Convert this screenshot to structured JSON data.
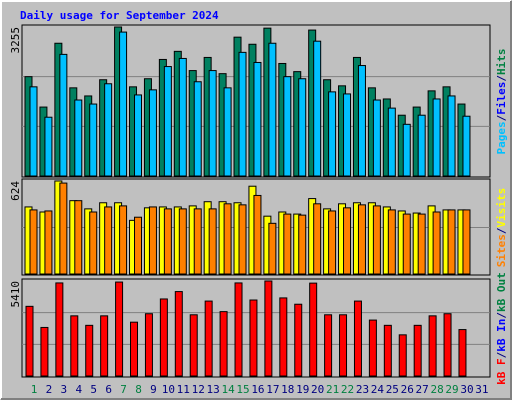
{
  "chart_data": {
    "type": "bar",
    "title": "Daily usage for September 2024",
    "legend_separator": "/",
    "categories": [
      "1",
      "2",
      "3",
      "4",
      "5",
      "6",
      "7",
      "8",
      "9",
      "10",
      "11",
      "12",
      "13",
      "14",
      "15",
      "16",
      "17",
      "18",
      "19",
      "20",
      "21",
      "22",
      "23",
      "24",
      "25",
      "26",
      "27",
      "28",
      "29",
      "30",
      "31"
    ],
    "category_colors": [
      "#008040",
      "#000080",
      "#000080",
      "#000080",
      "#000080",
      "#000080",
      "#008040",
      "#008040",
      "#000080",
      "#000080",
      "#000080",
      "#000080",
      "#000080",
      "#008040",
      "#008040",
      "#000080",
      "#000080",
      "#000080",
      "#000080",
      "#000080",
      "#008040",
      "#008040",
      "#000080",
      "#000080",
      "#000080",
      "#000080",
      "#000080",
      "#008040",
      "#008040",
      "#000080",
      "#000080"
    ],
    "panels": [
      {
        "ylim": [
          0,
          3255
        ],
        "yticks": [
          3255
        ],
        "grid_divisions": 3,
        "labels": [
          {
            "text": "Pages",
            "color": "#00C0FF"
          },
          {
            "text": "Files",
            "color": "#0000FF"
          },
          {
            "text": "Hits",
            "color": "#008040"
          }
        ],
        "series": [
          {
            "color": "#008060",
            "values": [
              2170,
              1506,
              2900,
              1926,
              1749,
              2103,
              3255,
              1948,
              2125,
              2546,
              2723,
              2303,
              2590,
              2236,
              3033,
              2878,
              3230,
              2458,
              2280,
              3188,
              2103,
              1970,
              2590,
              1926,
              1683,
              1328,
              1506,
              1860,
              1948,
              1572,
              null
            ]
          },
          {
            "color": "#00C0FF",
            "values": [
              1948,
              1284,
              2657,
              1660,
              1572,
              2015,
              3144,
              1771,
              1882,
              2391,
              2568,
              2059,
              2303,
              1926,
              2701,
              2480,
              2900,
              2170,
              2125,
              2945,
              1838,
              1793,
              2413,
              1660,
              1483,
              1129,
              1328,
              1683,
              1749,
              1306,
              null
            ]
          }
        ]
      },
      {
        "ylim": [
          0,
          624
        ],
        "yticks": [
          624
        ],
        "grid_divisions": 2,
        "labels": [
          {
            "text": "Sites",
            "color": "#FF8000"
          },
          {
            "text": "Visits",
            "color": "#FFFF00"
          }
        ],
        "series": [
          {
            "color": "#FFFF00",
            "values": [
              450,
              416,
              624,
              492,
              437,
              478,
              478,
              360,
              444,
              450,
              450,
              457,
              485,
              485,
              478,
              589,
              388,
              416,
              402,
              506,
              437,
              471,
              478,
              478,
              450,
              423,
              409,
              457,
              430,
              430,
              null
            ]
          },
          {
            "color": "#FF8000",
            "values": [
              430,
              423,
              610,
              492,
              416,
              450,
              457,
              381,
              450,
              437,
              437,
              437,
              437,
              471,
              464,
              527,
              340,
              402,
              395,
              471,
              423,
              444,
              464,
              457,
              430,
              402,
              402,
              416,
              430,
              430,
              null
            ]
          }
        ]
      },
      {
        "ylim": [
          0,
          5410
        ],
        "yticks": [
          5410
        ],
        "grid_divisions": 3,
        "labels": [
          {
            "text": "kB F",
            "color": "#FF0000"
          },
          {
            "text": "kB In",
            "color": "#0000FF"
          },
          {
            "text": "kB Out",
            "color": "#008040"
          }
        ],
        "series": [
          {
            "color": "#FF0000",
            "values": [
              3967,
              2765,
              5300,
              3426,
              2885,
              3426,
              5350,
              3065,
              3546,
              4387,
              4808,
              3486,
              4267,
              3666,
              5300,
              4327,
              5410,
              4447,
              4087,
              5289,
              3486,
              3486,
              4267,
              3185,
              2885,
              2344,
              2885,
              3426,
              3546,
              2644,
              null
            ]
          }
        ]
      }
    ]
  }
}
